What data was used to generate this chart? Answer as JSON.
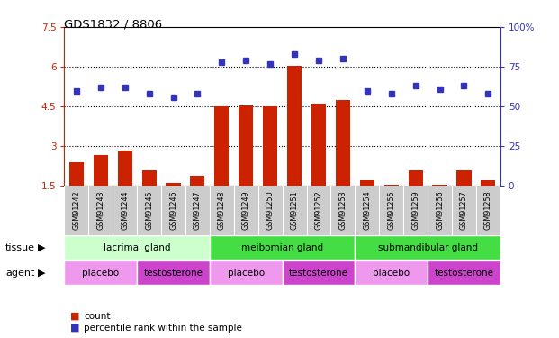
{
  "title": "GDS1832 / 8806",
  "samples": [
    "GSM91242",
    "GSM91243",
    "GSM91244",
    "GSM91245",
    "GSM91246",
    "GSM91247",
    "GSM91248",
    "GSM91249",
    "GSM91250",
    "GSM91251",
    "GSM91252",
    "GSM91253",
    "GSM91254",
    "GSM91255",
    "GSM91259",
    "GSM91256",
    "GSM91257",
    "GSM91258"
  ],
  "counts": [
    2.4,
    2.65,
    2.85,
    2.1,
    1.6,
    1.9,
    4.5,
    4.55,
    4.5,
    6.05,
    4.6,
    4.75,
    1.7,
    1.55,
    2.1,
    1.55,
    2.1,
    1.7
  ],
  "percentiles_pct": [
    60,
    62,
    62,
    58,
    56,
    58,
    78,
    79,
    77,
    83,
    79,
    80,
    60,
    58,
    63,
    61,
    63,
    58
  ],
  "ylim_left": [
    1.5,
    7.5
  ],
  "ylim_right": [
    0,
    100
  ],
  "yticks_left": [
    1.5,
    3.0,
    4.5,
    6.0,
    7.5
  ],
  "yticks_left_labels": [
    "1.5",
    "3",
    "4.5",
    "6",
    "7.5"
  ],
  "yticks_right": [
    0,
    25,
    50,
    75,
    100
  ],
  "yticks_right_labels": [
    "0",
    "25",
    "50",
    "75",
    "100%"
  ],
  "bar_color": "#cc2200",
  "dot_color": "#3333bb",
  "tissue_groups": [
    {
      "label": "lacrimal gland",
      "start": 0,
      "end": 6,
      "color": "#ccffcc"
    },
    {
      "label": "meibomian gland",
      "start": 6,
      "end": 12,
      "color": "#55ee55"
    },
    {
      "label": "submandibular gland",
      "start": 12,
      "end": 18,
      "color": "#55ee55"
    }
  ],
  "agent_groups": [
    {
      "label": "placebo",
      "start": 0,
      "end": 3,
      "color": "#ee99ee"
    },
    {
      "label": "testosterone",
      "start": 3,
      "end": 6,
      "color": "#cc44cc"
    },
    {
      "label": "placebo",
      "start": 6,
      "end": 9,
      "color": "#ee99ee"
    },
    {
      "label": "testosterone",
      "start": 9,
      "end": 12,
      "color": "#cc44cc"
    },
    {
      "label": "placebo",
      "start": 12,
      "end": 15,
      "color": "#ee99ee"
    },
    {
      "label": "testosterone",
      "start": 15,
      "end": 18,
      "color": "#cc44cc"
    }
  ],
  "legend_count_label": "count",
  "legend_pct_label": "percentile rank within the sample",
  "tissue_label": "tissue",
  "agent_label": "agent",
  "sample_bg_color": "#cccccc",
  "hgrid_values": [
    3.0,
    4.5,
    6.0
  ]
}
